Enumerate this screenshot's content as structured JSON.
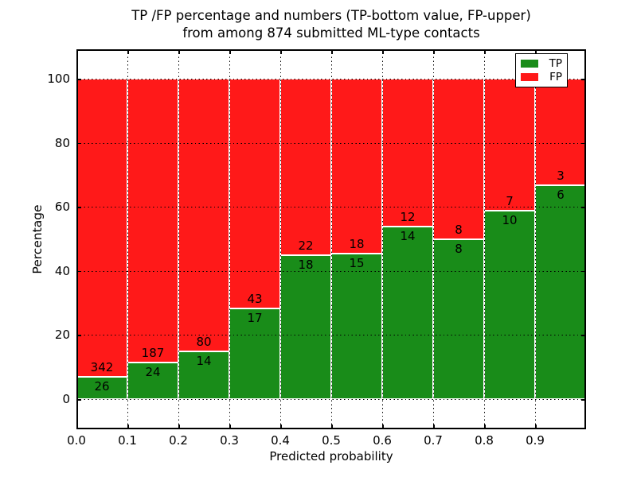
{
  "title": {
    "line1": "TP /FP percentage and numbers (TP-bottom value, FP-upper)",
    "line2": "from among 874 submitted ML-type contacts"
  },
  "axes": {
    "xlabel": "Predicted probability",
    "ylabel": "Percentage",
    "xtick_labels": [
      "0.0",
      "0.1",
      "0.2",
      "0.3",
      "0.4",
      "0.5",
      "0.6",
      "0.7",
      "0.8",
      "0.9"
    ],
    "ytick_values": [
      0,
      20,
      40,
      60,
      80,
      100
    ]
  },
  "legend": {
    "position": "upper right",
    "items": [
      {
        "label": "TP",
        "color": "#198c19"
      },
      {
        "label": "FP",
        "color": "#ff1919"
      }
    ]
  },
  "colors": {
    "tp": "#198c19",
    "fp": "#ff1919",
    "bar_edge": "#ffffff",
    "grid": "#000000",
    "frame": "#000000",
    "background": "#ffffff",
    "text": "#000000"
  },
  "chart_data": {
    "type": "bar",
    "stacked": true,
    "normalized": "each bin scaled to 100%",
    "title": "TP /FP percentage and numbers (TP-bottom value, FP-upper) from among 874 submitted ML-type contacts",
    "xlabel": "Predicted probability",
    "ylabel": "Percentage",
    "xlim": [
      0.0,
      1.0
    ],
    "ylim": [
      -10,
      110
    ],
    "grid": "dotted, both axes, on top of bars",
    "legend_position": "upper right",
    "bin_starts": [
      0.0,
      0.1,
      0.2,
      0.3,
      0.4,
      0.5,
      0.6,
      0.7,
      0.8,
      0.9
    ],
    "bin_width": 0.1,
    "series": [
      {
        "name": "TP",
        "color": "#198c19",
        "counts": [
          26,
          24,
          14,
          17,
          18,
          15,
          14,
          8,
          10,
          6
        ]
      },
      {
        "name": "FP",
        "color": "#ff1919",
        "counts": [
          342,
          187,
          80,
          43,
          22,
          18,
          12,
          8,
          7,
          3
        ]
      }
    ],
    "tp_percent": [
      7.1,
      11.4,
      14.9,
      28.3,
      45.0,
      45.5,
      53.8,
      50.0,
      58.8,
      66.7
    ],
    "total_contacts": 874
  }
}
